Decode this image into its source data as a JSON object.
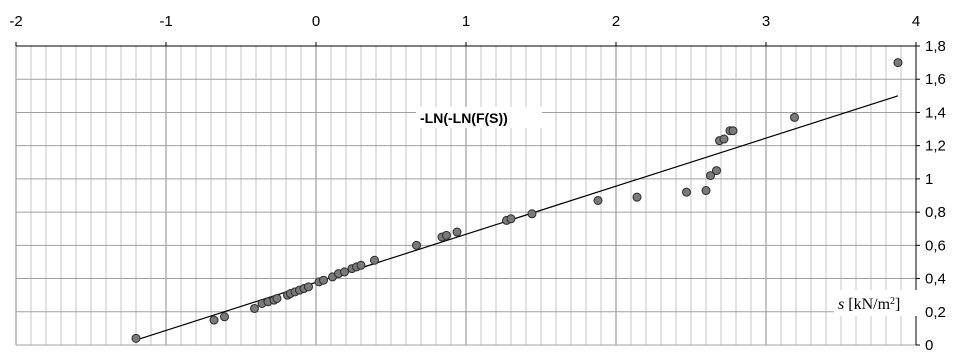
{
  "chart_data": {
    "type": "scatter",
    "title": "",
    "xlabel": "",
    "ylabel": "",
    "xlim": [
      -2,
      4
    ],
    "ylim": [
      0,
      1.8
    ],
    "x_ticks": [
      "-2",
      "-1",
      "0",
      "1",
      "2",
      "3",
      "4"
    ],
    "y_ticks": [
      "0",
      "0,2",
      "0,4",
      "0,6",
      "0,8",
      "1",
      "1,2",
      "1,4",
      "1,6",
      "1,8"
    ],
    "grid": true,
    "annotations": {
      "series_label": "-LN(-LN(F(S))",
      "unit_label": "s [kN/m²]"
    },
    "series": [
      {
        "type": "scatter",
        "points": [
          [
            -1.2,
            0.04
          ],
          [
            -0.68,
            0.15
          ],
          [
            -0.61,
            0.17
          ],
          [
            -0.41,
            0.22
          ],
          [
            -0.36,
            0.25
          ],
          [
            -0.32,
            0.26
          ],
          [
            -0.28,
            0.27
          ],
          [
            -0.26,
            0.28
          ],
          [
            -0.19,
            0.3
          ],
          [
            -0.17,
            0.31
          ],
          [
            -0.14,
            0.32
          ],
          [
            -0.11,
            0.33
          ],
          [
            -0.08,
            0.34
          ],
          [
            -0.05,
            0.35
          ],
          [
            0.02,
            0.38
          ],
          [
            0.05,
            0.39
          ],
          [
            0.11,
            0.41
          ],
          [
            0.15,
            0.43
          ],
          [
            0.19,
            0.44
          ],
          [
            0.24,
            0.46
          ],
          [
            0.27,
            0.47
          ],
          [
            0.3,
            0.48
          ],
          [
            0.39,
            0.51
          ],
          [
            0.67,
            0.6
          ],
          [
            0.84,
            0.65
          ],
          [
            0.87,
            0.66
          ],
          [
            0.94,
            0.68
          ],
          [
            1.27,
            0.75
          ],
          [
            1.3,
            0.76
          ],
          [
            1.44,
            0.79
          ],
          [
            1.88,
            0.87
          ],
          [
            2.14,
            0.89
          ],
          [
            2.47,
            0.92
          ],
          [
            2.6,
            0.93
          ],
          [
            2.63,
            1.02
          ],
          [
            2.67,
            1.05
          ],
          [
            2.69,
            1.23
          ],
          [
            2.72,
            1.24
          ],
          [
            2.76,
            1.29
          ],
          [
            2.78,
            1.29
          ],
          [
            3.19,
            1.37
          ],
          [
            3.88,
            1.7
          ]
        ]
      },
      {
        "type": "line",
        "points": [
          [
            -1.2,
            0.03
          ],
          [
            3.88,
            1.5
          ]
        ]
      }
    ]
  }
}
